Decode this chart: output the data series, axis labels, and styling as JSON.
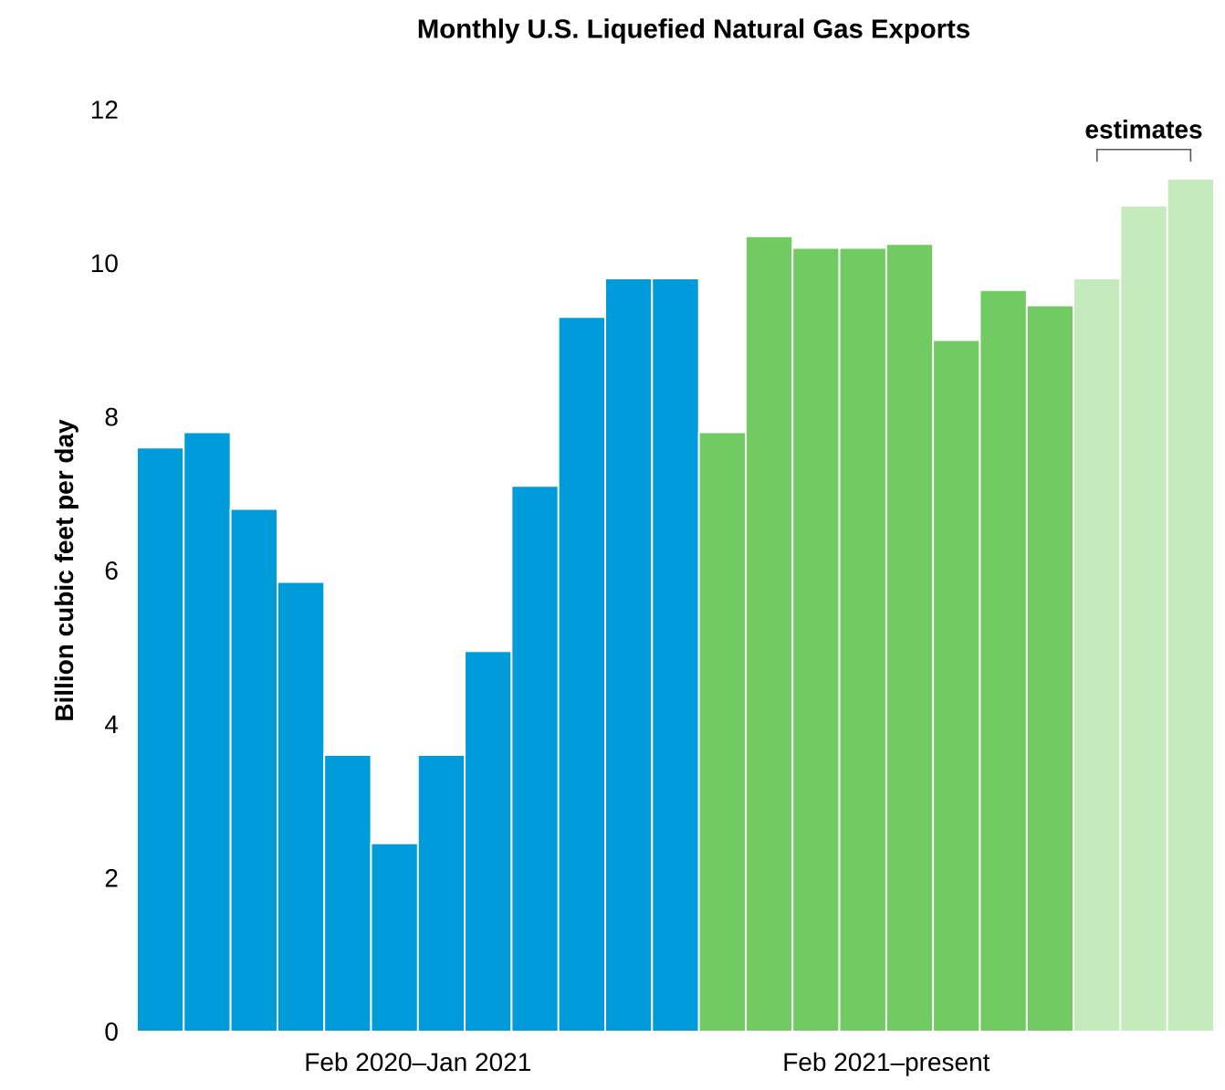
{
  "chart_data": {
    "type": "bar",
    "title": "Monthly U.S. Liquefied Natural Gas Exports",
    "ylabel": "Billion cubic feet per day",
    "categories": [
      null,
      null,
      null,
      null,
      null,
      null,
      null,
      null,
      null,
      null,
      null,
      null,
      null,
      null,
      null,
      null,
      null,
      null,
      null,
      null,
      null,
      null,
      null
    ],
    "values": [
      7.6,
      7.8,
      6.8,
      5.85,
      3.6,
      2.45,
      3.6,
      4.95,
      7.1,
      9.3,
      9.8,
      9.8,
      7.8,
      10.35,
      10.2,
      10.2,
      10.25,
      9.0,
      9.65,
      9.45,
      9.8,
      10.75,
      11.1
    ],
    "colors": [
      "#009bdb",
      "#009bdb",
      "#009bdb",
      "#009bdb",
      "#009bdb",
      "#009bdb",
      "#009bdb",
      "#009bdb",
      "#009bdb",
      "#009bdb",
      "#009bdb",
      "#009bdb",
      "#72cb62",
      "#72cb62",
      "#72cb62",
      "#72cb62",
      "#72cb62",
      "#72cb62",
      "#72cb62",
      "#72cb62",
      "#c5eabc",
      "#c5eabc",
      "#c5eabc"
    ],
    "ylim": [
      0,
      12
    ],
    "yticks": [
      0,
      2,
      4,
      6,
      8,
      10,
      12
    ],
    "annotations": [
      "Feb 2020–Jan 2021",
      "Feb 2021–present",
      "estimates"
    ]
  }
}
